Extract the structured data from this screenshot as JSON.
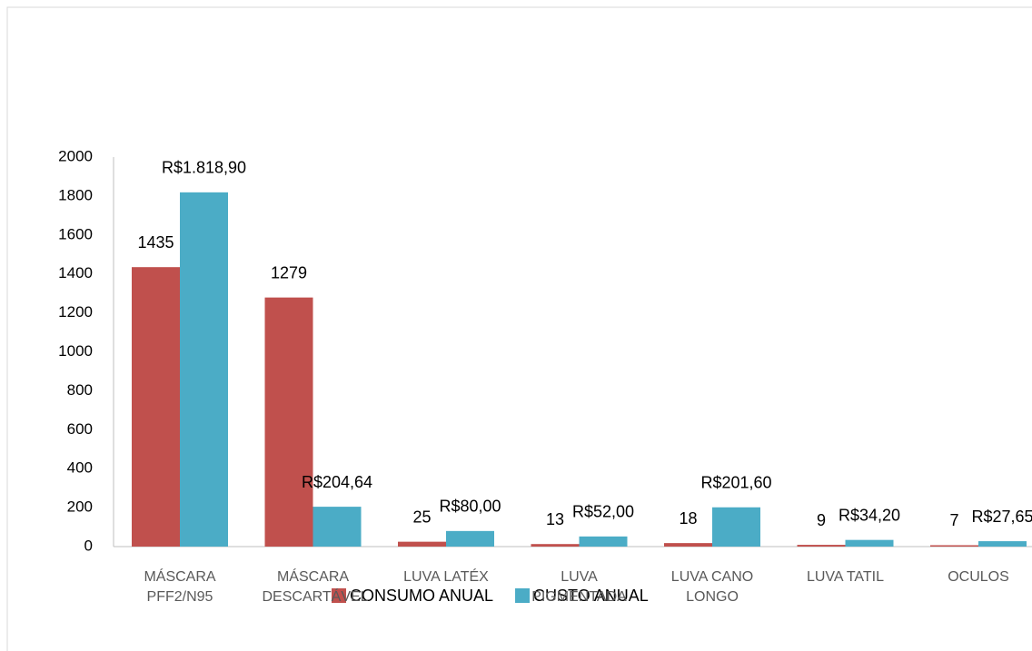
{
  "chart_data": {
    "type": "bar",
    "categories": [
      "MÁSCARA PFF2/N95",
      "MÁSCARA DESCARTÁVEL",
      "LUVA LATÉX",
      "LUVA PIGMENTADA",
      "LUVA CANO LONGO",
      "LUVA TATIL",
      "OCULOS"
    ],
    "series": [
      {
        "name": "CONSUMO ANUAL",
        "color": "#c0504d",
        "values": [
          1435,
          1279,
          25,
          13,
          18,
          9,
          7
        ]
      },
      {
        "name": "CUSTO ANUAL",
        "color": "#4bacc6",
        "values": [
          1818.9,
          204.64,
          80,
          52,
          201.6,
          34.2,
          27.65
        ],
        "value_labels": [
          "R$1.818,90",
          "R$204,64",
          "R$80,00",
          "R$52,00",
          "R$201,60",
          "R$34,20",
          "R$27,65"
        ]
      }
    ],
    "ylim": [
      0,
      2000
    ],
    "yticks": [
      0,
      200,
      400,
      600,
      800,
      1000,
      1200,
      1400,
      1600,
      1800,
      2000
    ],
    "legend": "bottom"
  }
}
